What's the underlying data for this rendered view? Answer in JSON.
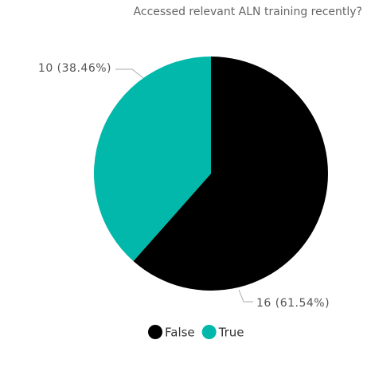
{
  "chart_data": {
    "type": "pie",
    "title": "Accessed relevant ALN training recently?",
    "categories": [
      "False",
      "True"
    ],
    "values": [
      16,
      10
    ],
    "value_labels": [
      "16 (61.54%)",
      "10 (38.46%)"
    ],
    "colors": [
      "#000000",
      "#01B8AA"
    ],
    "legend": "bottom"
  }
}
